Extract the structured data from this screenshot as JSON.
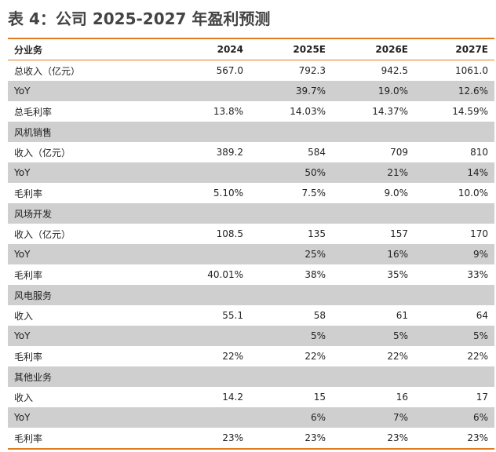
{
  "title": "表 4：公司 2025-2027 年盈利预测",
  "columns": [
    "分业务",
    "2024",
    "2025E",
    "2026E",
    "2027E"
  ],
  "rows": [
    {
      "label": "总收入（亿元）",
      "v": [
        "567.0",
        "792.3",
        "942.5",
        "1061.0"
      ],
      "shade": false
    },
    {
      "label": "YoY",
      "v": [
        "",
        "39.7%",
        "19.0%",
        "12.6%"
      ],
      "shade": true
    },
    {
      "label": "总毛利率",
      "v": [
        "13.8%",
        "14.03%",
        "14.37%",
        "14.59%"
      ],
      "shade": false
    },
    {
      "label": "风机销售",
      "v": [
        "",
        "",
        "",
        ""
      ],
      "shade": true
    },
    {
      "label": "收入（亿元）",
      "v": [
        "389.2",
        "584",
        "709",
        "810"
      ],
      "shade": false
    },
    {
      "label": "YoY",
      "v": [
        "",
        "50%",
        "21%",
        "14%"
      ],
      "shade": true
    },
    {
      "label": "毛利率",
      "v": [
        "5.10%",
        "7.5%",
        "9.0%",
        "10.0%"
      ],
      "shade": false
    },
    {
      "label": "风场开发",
      "v": [
        "",
        "",
        "",
        ""
      ],
      "shade": true
    },
    {
      "label": "收入（亿元）",
      "v": [
        "108.5",
        "135",
        "157",
        "170"
      ],
      "shade": false
    },
    {
      "label": "YoY",
      "v": [
        "",
        "25%",
        "16%",
        "9%"
      ],
      "shade": true
    },
    {
      "label": "毛利率",
      "v": [
        "40.01%",
        "38%",
        "35%",
        "33%"
      ],
      "shade": false
    },
    {
      "label": "风电服务",
      "v": [
        "",
        "",
        "",
        ""
      ],
      "shade": true
    },
    {
      "label": "收入",
      "v": [
        "55.1",
        "58",
        "61",
        "64"
      ],
      "shade": false
    },
    {
      "label": "YoY",
      "v": [
        "",
        "5%",
        "5%",
        "5%"
      ],
      "shade": true
    },
    {
      "label": "毛利率",
      "v": [
        "22%",
        "22%",
        "22%",
        "22%"
      ],
      "shade": false
    },
    {
      "label": "其他业务",
      "v": [
        "",
        "",
        "",
        ""
      ],
      "shade": true
    },
    {
      "label": "收入",
      "v": [
        "14.2",
        "15",
        "16",
        "17"
      ],
      "shade": false
    },
    {
      "label": "YoY",
      "v": [
        "",
        "6%",
        "7%",
        "6%"
      ],
      "shade": true
    },
    {
      "label": "毛利率",
      "v": [
        "23%",
        "23%",
        "23%",
        "23%"
      ],
      "shade": false
    }
  ]
}
